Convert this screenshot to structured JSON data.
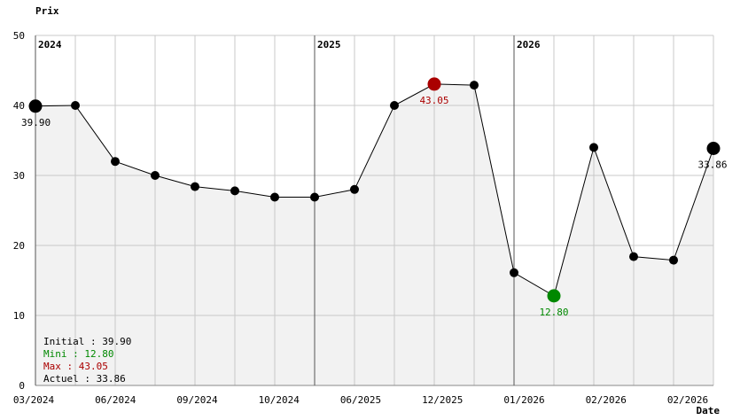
{
  "chart_data": {
    "type": "line",
    "ylabel": "Prix",
    "xlabel": "Date",
    "ylim": [
      0,
      50
    ],
    "yticks": [
      0,
      10,
      20,
      30,
      40,
      50
    ],
    "grid": true,
    "area_fill": true,
    "x_labels": [
      "03/2024",
      "06/2024",
      "09/2024",
      "10/2024",
      "06/2025",
      "12/2025",
      "01/2026",
      "02/2026",
      "02/2026"
    ],
    "year_markers": [
      {
        "label": "2024",
        "index": 0
      },
      {
        "label": "2025",
        "index": 7
      },
      {
        "label": "2026",
        "index": 12
      }
    ],
    "values": [
      39.9,
      40.0,
      32.0,
      30.0,
      28.4,
      27.8,
      26.9,
      26.9,
      28.0,
      40.0,
      43.05,
      42.9,
      16.1,
      12.8,
      34.0,
      18.4,
      17.9,
      33.86
    ],
    "point_labels": [
      {
        "index": 0,
        "text": "39.90",
        "kind": "initial"
      },
      {
        "index": 10,
        "text": "43.05",
        "kind": "max"
      },
      {
        "index": 13,
        "text": "12.80",
        "kind": "min"
      },
      {
        "index": 17,
        "text": "33.86",
        "kind": "current"
      }
    ],
    "summary": [
      {
        "text": "Initial : 39.90",
        "kind": "initial"
      },
      {
        "text": "Mini : 12.80",
        "kind": "min"
      },
      {
        "text": "Max : 43.05",
        "kind": "max"
      },
      {
        "text": "Actuel : 33.86",
        "kind": "current"
      }
    ],
    "colors": {
      "line": "#000000",
      "point": "#000000",
      "min": "#008800",
      "max": "#aa0000",
      "grid": "#c8c8c8",
      "fill": "#f2f2f2",
      "axis": "#888888",
      "year_line": "#555555"
    }
  }
}
